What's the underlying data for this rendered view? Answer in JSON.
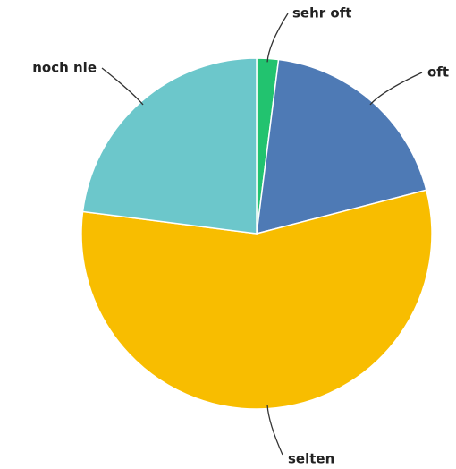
{
  "chart_data": {
    "type": "pie",
    "categories": [
      "sehr oft",
      "oft",
      "selten",
      "noch nie"
    ],
    "values": [
      2,
      19,
      56,
      23
    ],
    "colors": [
      "#22c36f",
      "#4e7ab5",
      "#f8bd00",
      "#6cc7cb"
    ]
  }
}
